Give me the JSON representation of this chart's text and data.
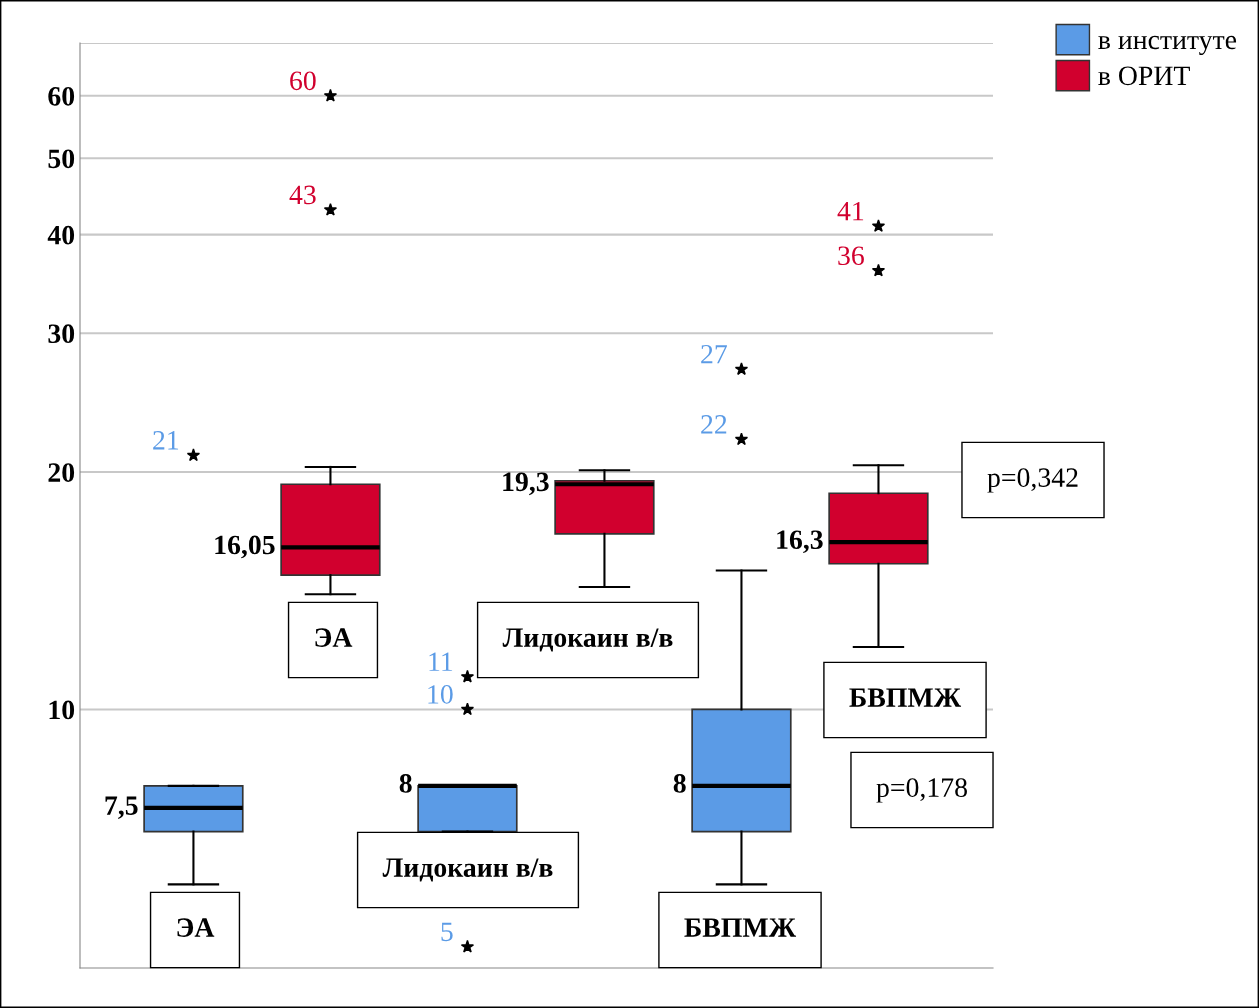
{
  "chart_data": {
    "type": "box",
    "categories": [
      null,
      null,
      null
    ],
    "series": [
      {
        "name": "в институте",
        "color": "#5b9be6",
        "boxes": [
          {
            "low": 6,
            "q1": 7,
            "median": 7.5,
            "q3": 8,
            "high": 8,
            "outliers": [
              21
            ]
          },
          {
            "low": 7,
            "q1": 7,
            "median": 8,
            "q3": 8,
            "high": 8,
            "outliers": [
              5,
              10,
              11
            ]
          },
          {
            "low": 6,
            "q1": 7,
            "median": 8,
            "q3": 10,
            "high": 15,
            "outliers": [
              22,
              27
            ]
          }
        ]
      },
      {
        "name": "в ОРИТ",
        "color": "#d1002e",
        "boxes": [
          {
            "low": 14,
            "q1": 14.8,
            "median": 16.05,
            "q3": 19.3,
            "high": 20.3,
            "outliers": [
              43,
              60
            ]
          },
          {
            "low": 14.3,
            "q1": 16.7,
            "median": 19.3,
            "q3": 19.5,
            "high": 20.1
          },
          {
            "low": 12,
            "q1": 15.3,
            "median": 16.3,
            "q3": 18.8,
            "high": 20.4,
            "outliers": [
              36,
              41
            ]
          }
        ]
      }
    ],
    "log": true,
    "ylim": [
      4.7,
      70
    ],
    "yticks": [
      10,
      20,
      30,
      40,
      50,
      60,
      {
        "value": 70,
        "label": null
      }
    ],
    "grid": "y",
    "legend": "top right",
    "tick_labels": "y",
    "marker": "star",
    "annotations": [
      "7,5",
      "16,05",
      "8",
      "19,3",
      "8",
      "16,3",
      "21",
      "60",
      "43",
      "11",
      "10",
      "5",
      "27",
      "22",
      "41",
      "36",
      "ЭА",
      "ЭА",
      "Лидокаин в/в",
      "Лидокаин в/в",
      "БВПМЖ",
      "БВПМЖ",
      "p=0,342",
      "p=0,178"
    ]
  }
}
